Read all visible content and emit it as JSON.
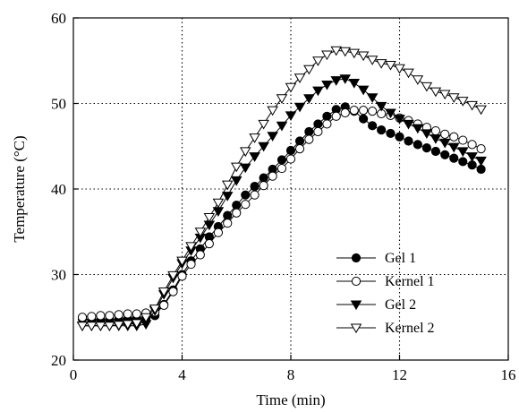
{
  "chart_data": {
    "type": "line",
    "title": "",
    "xlabel": "Time (min)",
    "ylabel": "Temperature (°C)",
    "xlim": [
      0,
      16
    ],
    "ylim": [
      20,
      60
    ],
    "xticks": [
      0,
      4,
      8,
      12,
      16
    ],
    "yticks": [
      20,
      30,
      40,
      50,
      60
    ],
    "xtick_labels": [
      "0",
      "4",
      "8",
      "12",
      "16"
    ],
    "ytick_labels": [
      "20",
      "30",
      "40",
      "50",
      "60"
    ],
    "grid": "dotted, at major ticks",
    "legend_position": "bottom-right",
    "x": [
      0.33,
      0.67,
      1.0,
      1.33,
      1.67,
      2.0,
      2.33,
      2.67,
      3.0,
      3.33,
      3.67,
      4.0,
      4.33,
      4.67,
      5.0,
      5.33,
      5.67,
      6.0,
      6.33,
      6.67,
      7.0,
      7.33,
      7.67,
      8.0,
      8.33,
      8.67,
      9.0,
      9.33,
      9.67,
      10.0,
      10.33,
      10.67,
      11.0,
      11.33,
      11.67,
      12.0,
      12.33,
      12.67,
      13.0,
      13.33,
      13.67,
      14.0,
      14.33,
      14.67,
      15.0
    ],
    "series": [
      {
        "name": "Gel 1",
        "marker": "filled-circle",
        "color": "#000000",
        "values": [
          24.8,
          24.7,
          24.7,
          24.7,
          24.8,
          24.8,
          24.9,
          24.9,
          25.2,
          26.5,
          28.2,
          30.0,
          31.6,
          33.0,
          34.4,
          35.6,
          36.9,
          38.1,
          39.3,
          40.3,
          41.3,
          42.3,
          43.4,
          44.5,
          45.6,
          46.7,
          47.6,
          48.5,
          49.3,
          49.6,
          49.1,
          48.2,
          47.4,
          46.9,
          46.5,
          46.1,
          45.6,
          45.2,
          44.8,
          44.4,
          44.0,
          43.6,
          43.2,
          42.8,
          42.3
        ]
      },
      {
        "name": "Kernel 1",
        "marker": "open-circle",
        "color": "#000000",
        "values": [
          25.0,
          25.1,
          25.2,
          25.2,
          25.3,
          25.4,
          25.4,
          25.5,
          25.6,
          26.4,
          28.0,
          29.8,
          31.2,
          32.3,
          33.6,
          34.9,
          36.0,
          37.2,
          38.2,
          39.3,
          40.4,
          41.5,
          42.4,
          43.5,
          44.7,
          45.8,
          46.7,
          47.6,
          48.5,
          48.9,
          49.2,
          49.2,
          49.1,
          48.8,
          48.6,
          48.3,
          48.0,
          47.6,
          47.2,
          46.8,
          46.4,
          46.1,
          45.7,
          45.2,
          44.7
        ]
      },
      {
        "name": "Gel 2",
        "marker": "filled-triangle-down",
        "color": "#000000",
        "values": [
          24.0,
          24.0,
          24.0,
          24.0,
          24.0,
          24.0,
          24.0,
          24.2,
          25.8,
          27.7,
          29.6,
          31.3,
          32.8,
          34.3,
          35.8,
          37.4,
          39.2,
          41.0,
          42.5,
          43.8,
          45.0,
          46.2,
          47.4,
          48.6,
          49.6,
          50.6,
          51.5,
          52.2,
          52.7,
          52.9,
          52.4,
          51.6,
          50.7,
          49.7,
          48.9,
          48.2,
          47.6,
          47.1,
          46.5,
          45.9,
          45.4,
          44.9,
          44.4,
          43.8,
          43.3
        ]
      },
      {
        "name": "Kernel 2",
        "marker": "open-triangle-down",
        "color": "#000000",
        "values": [
          24.0,
          24.0,
          24.0,
          24.0,
          24.1,
          24.2,
          24.3,
          25.0,
          26.0,
          28.0,
          29.9,
          31.6,
          33.3,
          35.0,
          36.7,
          38.4,
          40.5,
          42.6,
          44.4,
          46.0,
          47.6,
          49.2,
          50.6,
          51.9,
          53.0,
          54.0,
          55.0,
          55.7,
          56.2,
          56.1,
          55.9,
          55.6,
          55.1,
          54.7,
          54.5,
          54.1,
          53.6,
          52.8,
          52.0,
          51.4,
          51.1,
          50.7,
          50.3,
          49.8,
          49.3
        ]
      }
    ]
  }
}
